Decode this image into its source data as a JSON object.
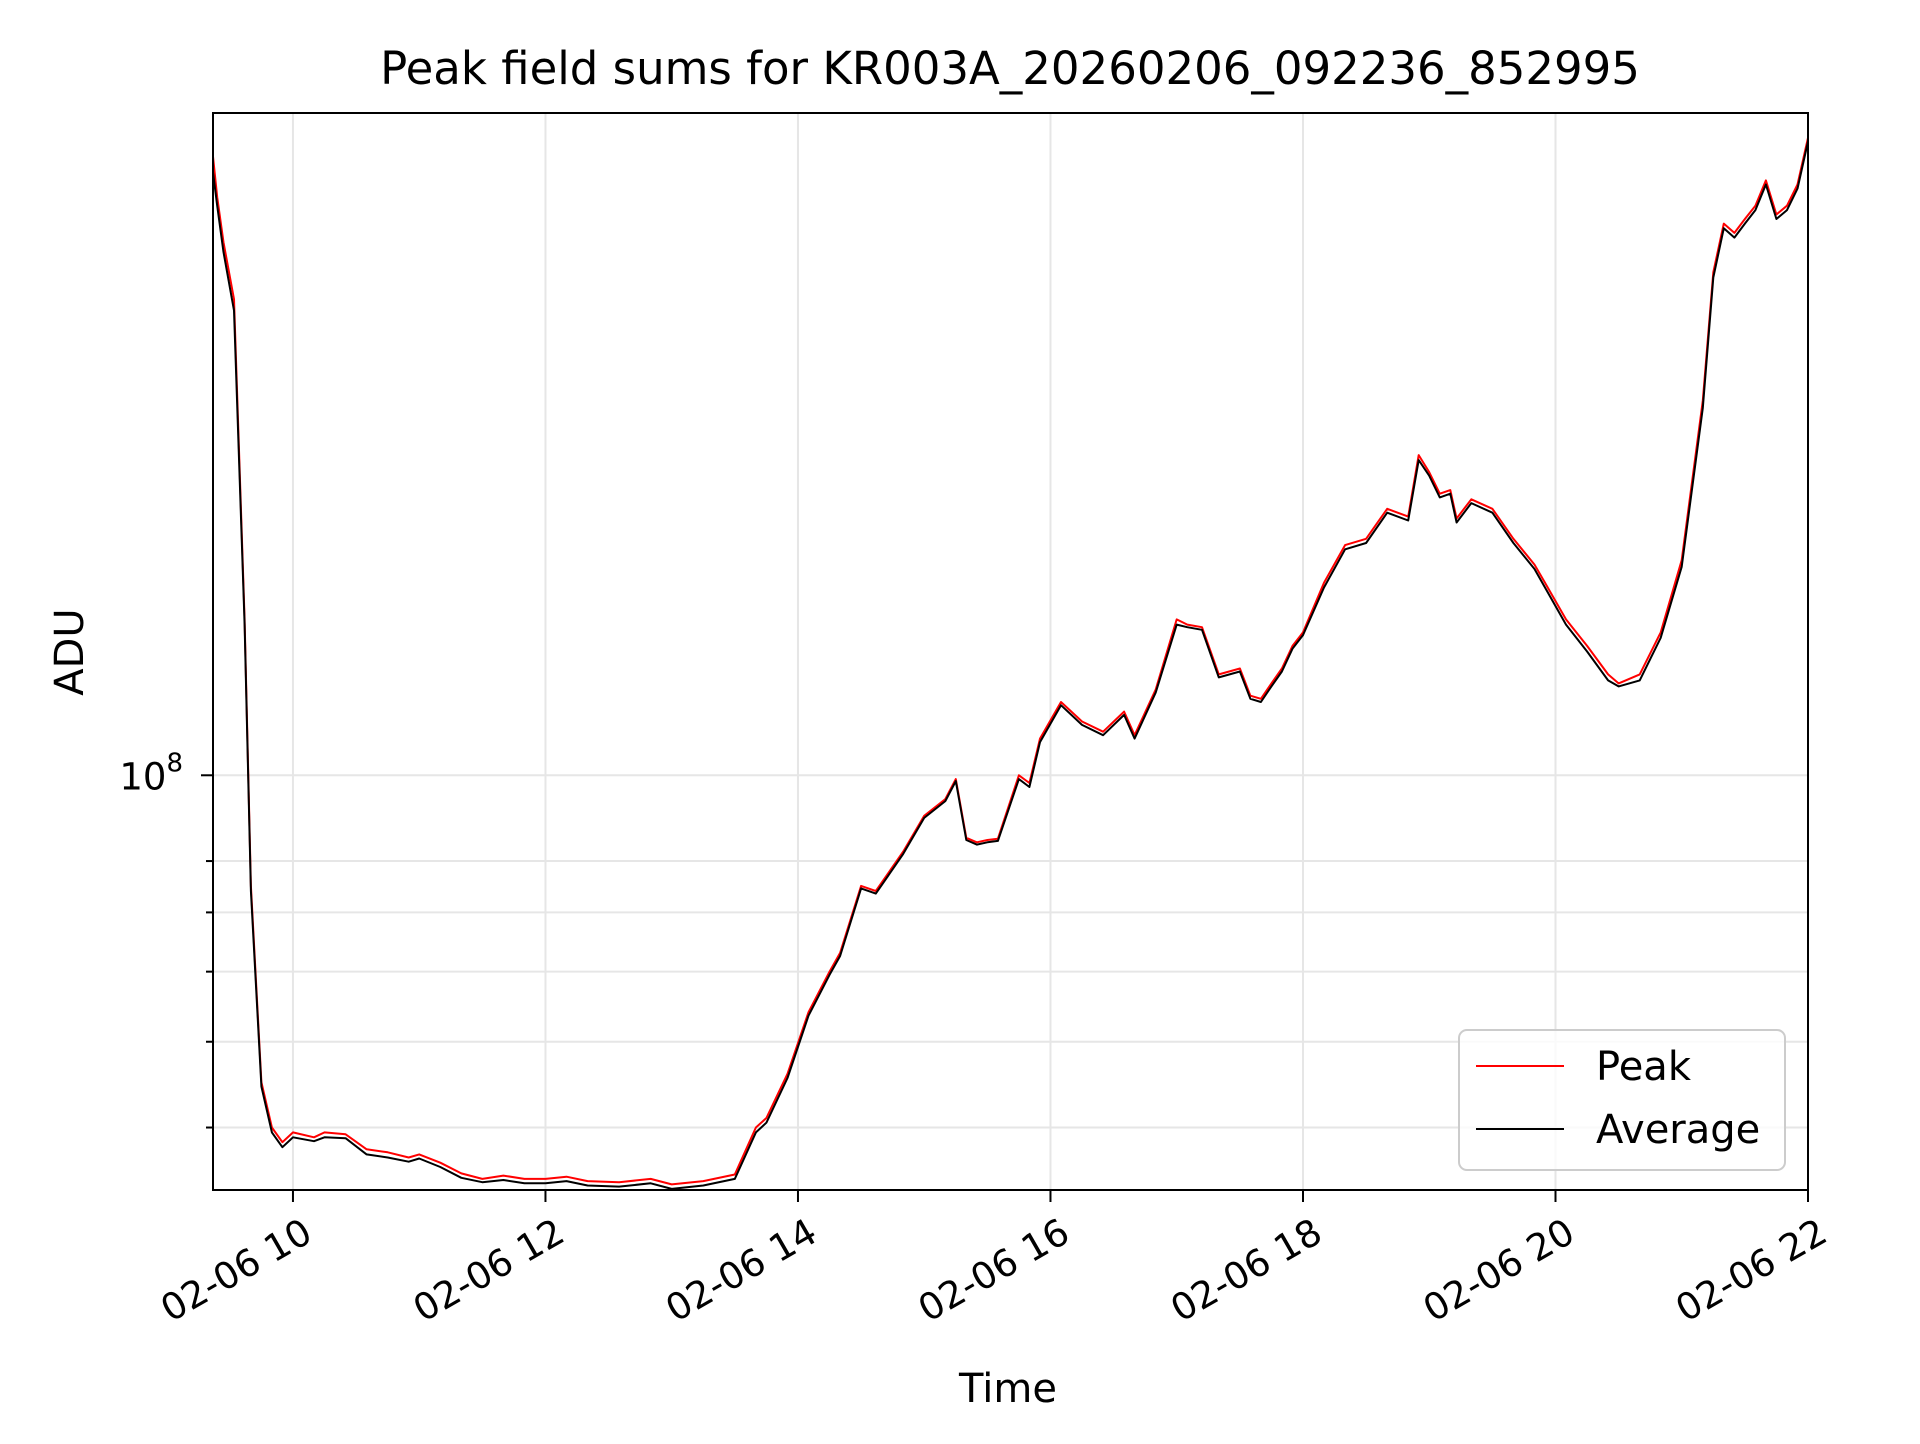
{
  "chart_data": {
    "type": "line",
    "title": "Peak field sums for KR003A_20260206_092236_852995",
    "xlabel": "Time",
    "ylabel": "ADU",
    "yscale": "log",
    "xlim": [
      "2026-02-06 09:22",
      "2026-02-06 22:00"
    ],
    "ylim": [
      34000000,
      560000000
    ],
    "grid": true,
    "legend_placement": "lower-right",
    "x_ticks": [
      {
        "value": "2026-02-06 10:00",
        "label": "02-06 10"
      },
      {
        "value": "2026-02-06 12:00",
        "label": "02-06 12"
      },
      {
        "value": "2026-02-06 14:00",
        "label": "02-06 14"
      },
      {
        "value": "2026-02-06 16:00",
        "label": "02-06 16"
      },
      {
        "value": "2026-02-06 18:00",
        "label": "02-06 18"
      },
      {
        "value": "2026-02-06 20:00",
        "label": "02-06 20"
      },
      {
        "value": "2026-02-06 22:00",
        "label": "02-06 22"
      }
    ],
    "y_ticks": [
      {
        "value": 100000000,
        "label_base": "10",
        "label_exp": "8"
      }
    ],
    "y_minor_ticks": [
      40000000,
      50000000,
      60000000,
      70000000,
      80000000
    ],
    "x": [
      "2026-02-06 09:22",
      "2026-02-06 09:24",
      "2026-02-06 09:27",
      "2026-02-06 09:32",
      "2026-02-06 09:37",
      "2026-02-06 09:40",
      "2026-02-06 09:45",
      "2026-02-06 09:50",
      "2026-02-06 09:55",
      "2026-02-06 10:00",
      "2026-02-06 10:10",
      "2026-02-06 10:15",
      "2026-02-06 10:25",
      "2026-02-06 10:35",
      "2026-02-06 10:45",
      "2026-02-06 10:55",
      "2026-02-06 11:00",
      "2026-02-06 11:10",
      "2026-02-06 11:20",
      "2026-02-06 11:30",
      "2026-02-06 11:40",
      "2026-02-06 11:50",
      "2026-02-06 12:00",
      "2026-02-06 12:10",
      "2026-02-06 12:20",
      "2026-02-06 12:35",
      "2026-02-06 12:50",
      "2026-02-06 13:00",
      "2026-02-06 13:15",
      "2026-02-06 13:30",
      "2026-02-06 13:40",
      "2026-02-06 13:45",
      "2026-02-06 13:55",
      "2026-02-06 14:05",
      "2026-02-06 14:15",
      "2026-02-06 14:20",
      "2026-02-06 14:30",
      "2026-02-06 14:37",
      "2026-02-06 14:42",
      "2026-02-06 14:50",
      "2026-02-06 15:00",
      "2026-02-06 15:10",
      "2026-02-06 15:15",
      "2026-02-06 15:20",
      "2026-02-06 15:25",
      "2026-02-06 15:30",
      "2026-02-06 15:35",
      "2026-02-06 15:45",
      "2026-02-06 15:50",
      "2026-02-06 15:55",
      "2026-02-06 16:05",
      "2026-02-06 16:15",
      "2026-02-06 16:25",
      "2026-02-06 16:35",
      "2026-02-06 16:40",
      "2026-02-06 16:50",
      "2026-02-06 17:00",
      "2026-02-06 17:05",
      "2026-02-06 17:12",
      "2026-02-06 17:20",
      "2026-02-06 17:30",
      "2026-02-06 17:35",
      "2026-02-06 17:40",
      "2026-02-06 17:45",
      "2026-02-06 17:50",
      "2026-02-06 17:55",
      "2026-02-06 18:00",
      "2026-02-06 18:10",
      "2026-02-06 18:20",
      "2026-02-06 18:30",
      "2026-02-06 18:40",
      "2026-02-06 18:50",
      "2026-02-06 18:55",
      "2026-02-06 19:00",
      "2026-02-06 19:05",
      "2026-02-06 19:10",
      "2026-02-06 19:13",
      "2026-02-06 19:20",
      "2026-02-06 19:30",
      "2026-02-06 19:40",
      "2026-02-06 19:50",
      "2026-02-06 19:55",
      "2026-02-06 20:05",
      "2026-02-06 20:15",
      "2026-02-06 20:25",
      "2026-02-06 20:30",
      "2026-02-06 20:40",
      "2026-02-06 20:50",
      "2026-02-06 21:00",
      "2026-02-06 21:10",
      "2026-02-06 21:15",
      "2026-02-06 21:20",
      "2026-02-06 21:25",
      "2026-02-06 21:30",
      "2026-02-06 21:35",
      "2026-02-06 21:40",
      "2026-02-06 21:45",
      "2026-02-06 21:50",
      "2026-02-06 21:55",
      "2026-02-06 22:00"
    ],
    "series": [
      {
        "name": "Peak",
        "color": "#ff0000",
        "values": [
          500000000,
          450000000,
          400000000,
          345000000,
          150000000,
          75000000,
          45000000,
          40000000,
          38500000,
          39500000,
          39000000,
          39500000,
          39300000,
          37800000,
          37500000,
          37000000,
          37300000,
          36500000,
          35500000,
          35000000,
          35300000,
          35000000,
          35000000,
          35200000,
          34800000,
          34700000,
          35000000,
          34500000,
          34800000,
          35400000,
          40000000,
          41000000,
          46000000,
          54000000,
          60000000,
          63000000,
          75000000,
          74000000,
          77000000,
          82000000,
          90000000,
          94000000,
          99000000,
          85000000,
          84000000,
          84500000,
          84800000,
          100000000,
          98000000,
          110000000,
          121000000,
          115000000,
          112000000,
          118000000,
          111000000,
          125000000,
          150000000,
          148000000,
          147000000,
          130000000,
          132000000,
          123000000,
          122000000,
          127000000,
          132000000,
          140000000,
          145000000,
          165000000,
          182000000,
          185000000,
          200000000,
          196000000,
          230000000,
          220000000,
          208000000,
          210000000,
          195000000,
          205000000,
          200000000,
          185000000,
          173000000,
          165000000,
          150000000,
          140000000,
          130000000,
          127000000,
          130000000,
          145000000,
          175000000,
          265000000,
          370000000,
          420000000,
          410000000,
          425000000,
          440000000,
          470000000,
          430000000,
          440000000,
          465000000,
          525000000
        ]
      },
      {
        "name": "Average",
        "color": "#000000",
        "values": [
          480000000,
          440000000,
          390000000,
          335000000,
          148000000,
          74000000,
          44500000,
          39500000,
          38000000,
          39000000,
          38600000,
          39000000,
          38900000,
          37300000,
          37000000,
          36600000,
          36900000,
          36100000,
          35100000,
          34700000,
          34900000,
          34600000,
          34600000,
          34800000,
          34400000,
          34300000,
          34600000,
          34100000,
          34400000,
          35000000,
          39500000,
          40500000,
          45500000,
          53500000,
          59500000,
          62500000,
          74500000,
          73500000,
          76500000,
          81500000,
          89500000,
          93500000,
          98500000,
          84500000,
          83500000,
          84000000,
          84300000,
          99000000,
          97000000,
          109000000,
          120000000,
          114000000,
          111000000,
          117000000,
          110000000,
          124000000,
          148000000,
          147000000,
          146000000,
          129000000,
          131000000,
          122000000,
          121000000,
          126000000,
          131000000,
          139000000,
          144000000,
          163000000,
          180000000,
          183000000,
          198000000,
          194000000,
          227000000,
          218000000,
          206000000,
          208000000,
          193000000,
          203000000,
          198000000,
          183000000,
          171000000,
          163000000,
          148000000,
          138000000,
          128000000,
          126000000,
          128000000,
          143000000,
          172000000,
          260000000,
          365000000,
          415000000,
          405000000,
          420000000,
          435000000,
          465000000,
          425000000,
          435000000,
          460000000,
          520000000
        ]
      }
    ]
  }
}
